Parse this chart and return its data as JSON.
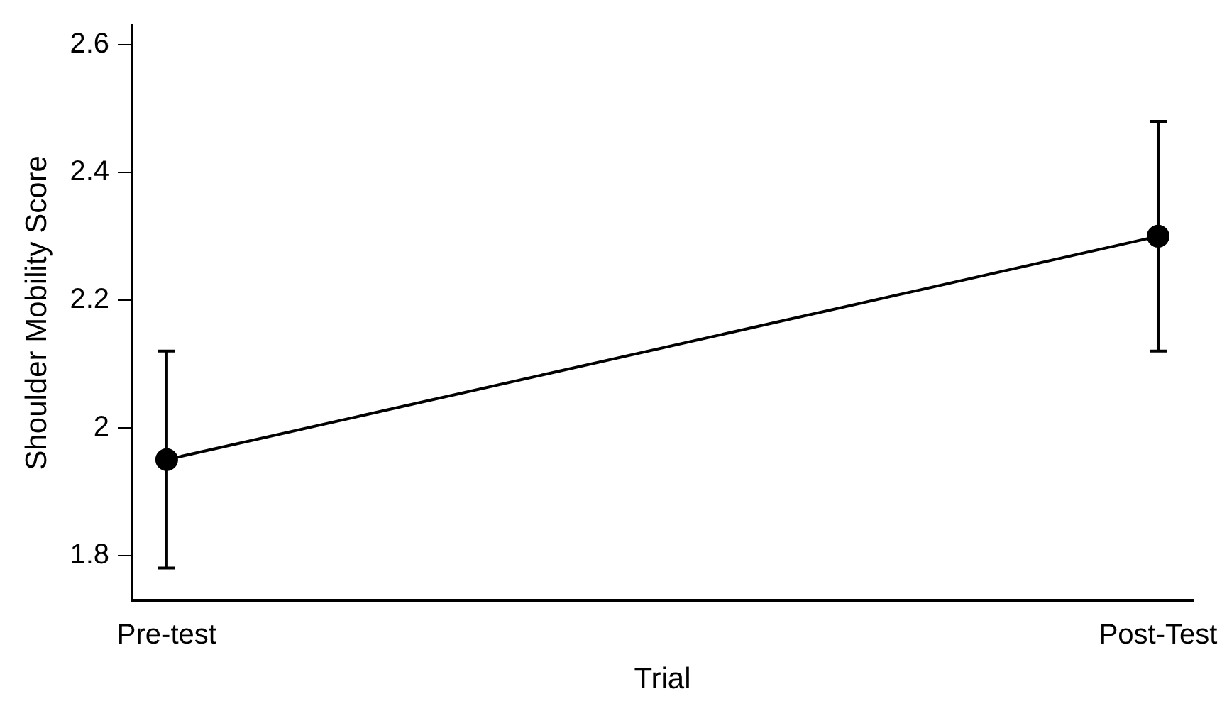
{
  "chart_data": {
    "type": "line",
    "xlabel": "Trial",
    "ylabel": "Shoulder Mobility Score",
    "categories": [
      "Pre-test",
      "Post-Test"
    ],
    "series": [
      {
        "color": "#000000",
        "values": [
          1.95,
          2.3
        ],
        "errors": [
          [
            1.78,
            2.12
          ],
          [
            2.12,
            2.48
          ]
        ]
      }
    ],
    "ylim": [
      1.73,
      2.63
    ],
    "yticks": [
      1.8,
      2,
      2.2,
      2.4,
      2.6
    ],
    "grid": false,
    "legend": false,
    "marker": "circle",
    "line_style": "solid"
  }
}
